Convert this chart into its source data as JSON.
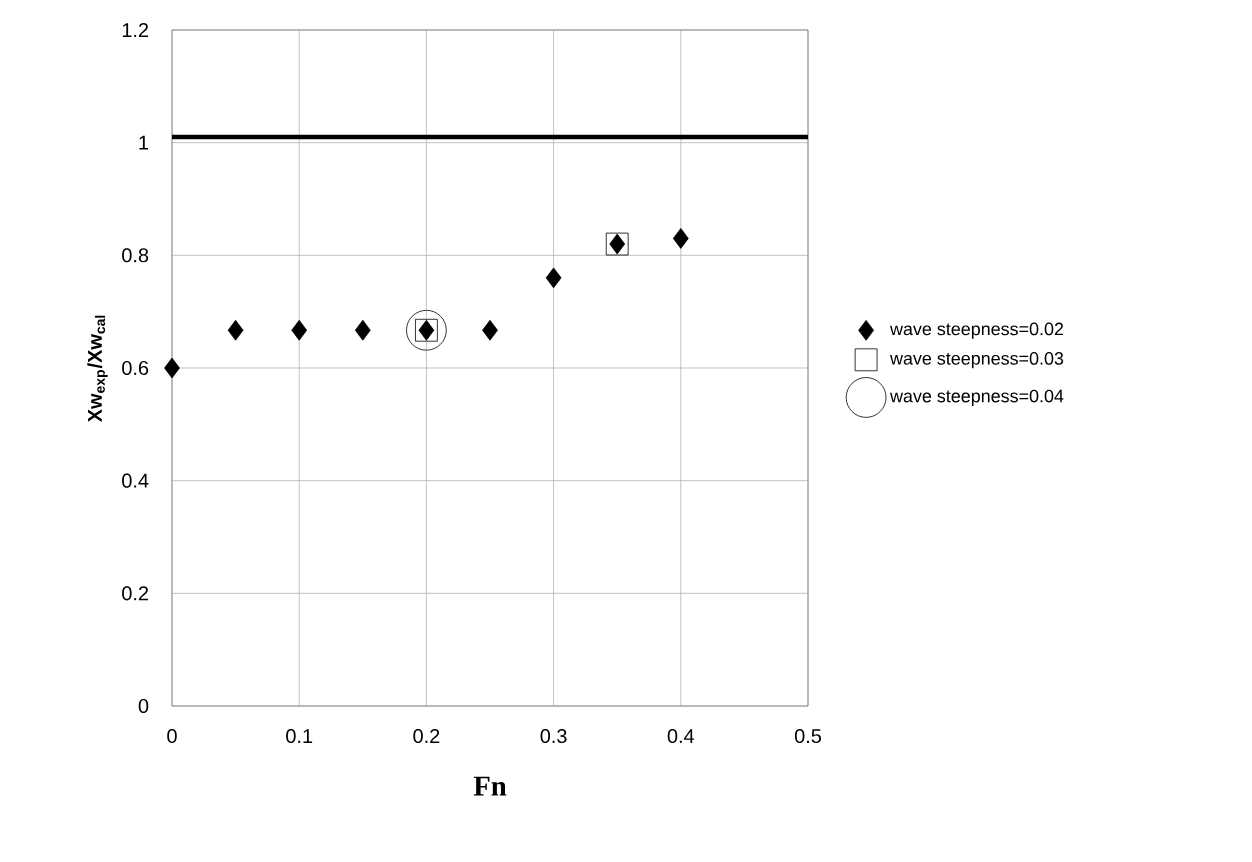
{
  "chart_data": {
    "type": "scatter",
    "xlabel": "Fn",
    "ylabel": "Xw$_{exp}$/Xw$_{cal}$",
    "xlim": [
      0,
      0.5
    ],
    "ylim": [
      0,
      1.2
    ],
    "xticks": [
      0,
      0.1,
      0.2,
      0.3,
      0.4,
      0.5
    ],
    "yticks": [
      0,
      0.2,
      0.4,
      0.6,
      0.8,
      1,
      1.2
    ],
    "grid": true,
    "legend": "right",
    "ref_lines": [
      {
        "axis": "y",
        "value": 1.01,
        "color": "#000000"
      }
    ],
    "series": [
      {
        "name": "wave steepness=0.02",
        "color": "#000000",
        "marker": "diamond",
        "x": [
          0,
          0.05,
          0.1,
          0.15,
          0.2,
          0.25,
          0.3,
          0.35,
          0.4
        ],
        "values": [
          0.6,
          0.667,
          0.667,
          0.667,
          0.667,
          0.667,
          0.76,
          0.82,
          0.83
        ]
      },
      {
        "name": "wave steepness=0.03",
        "color": "#000000",
        "marker": "square",
        "x": [
          0.2,
          0.35
        ],
        "values": [
          0.667,
          0.82
        ]
      },
      {
        "name": "wave steepness=0.04",
        "color": "#000000",
        "marker": "circle",
        "x": [
          0.2
        ],
        "values": [
          0.667
        ]
      }
    ]
  }
}
